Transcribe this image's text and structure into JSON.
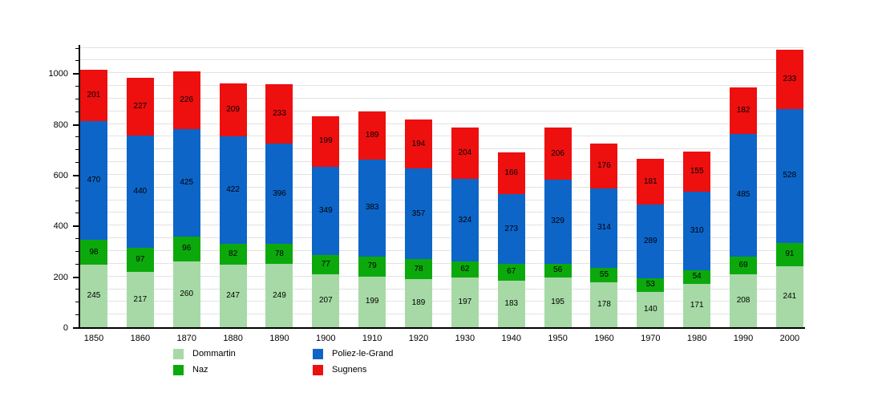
{
  "chart_data": {
    "type": "bar",
    "stacked": true,
    "title": "",
    "xlabel": "",
    "ylabel": "",
    "categories": [
      "1850",
      "1860",
      "1870",
      "1880",
      "1890",
      "1900",
      "1910",
      "1920",
      "1930",
      "1940",
      "1950",
      "1960",
      "1970",
      "1980",
      "1990",
      "2000"
    ],
    "series": [
      {
        "name": "Dommartin",
        "color": "#a6d9a6",
        "values": [
          245,
          217,
          260,
          247,
          249,
          207,
          199,
          189,
          197,
          183,
          195,
          178,
          140,
          171,
          208,
          241
        ]
      },
      {
        "name": "Naz",
        "color": "#0ca90c",
        "values": [
          98,
          97,
          96,
          82,
          78,
          77,
          79,
          78,
          62,
          67,
          56,
          55,
          53,
          54,
          69,
          91
        ]
      },
      {
        "name": "Poliez-le-Grand",
        "color": "#0d65c8",
        "values": [
          470,
          440,
          425,
          422,
          396,
          349,
          383,
          357,
          324,
          273,
          329,
          314,
          289,
          310,
          485,
          528
        ]
      },
      {
        "name": "Sugnens",
        "color": "#ee0f0f",
        "values": [
          201,
          227,
          226,
          209,
          233,
          199,
          189,
          194,
          204,
          166,
          206,
          176,
          181,
          155,
          182,
          233
        ]
      }
    ],
    "ylim": [
      0,
      1105
    ],
    "yticks": [
      0,
      200,
      400,
      600,
      800,
      1000
    ],
    "minor_step": 50,
    "grid": true,
    "gridline_color": "#e2e2e2",
    "axis_color": "#000000",
    "value_labels_shown": true,
    "legend_position": "bottom",
    "legend_columns": [
      [
        "Dommartin",
        "Naz"
      ],
      [
        "Poliez-le-Grand",
        "Sugnens"
      ]
    ]
  }
}
